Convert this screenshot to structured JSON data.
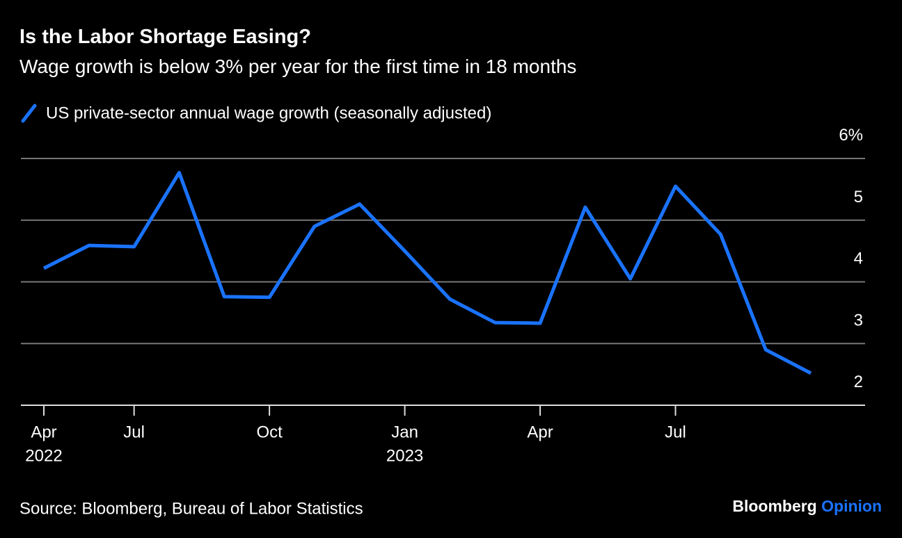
{
  "chart_data": {
    "type": "line",
    "title": "Is the Labor Shortage Easing?",
    "subtitle": "Wage growth is below 3% per year for the first time in 18 months",
    "categories": [
      "Apr",
      null,
      "Jul",
      null,
      null,
      "Oct",
      null,
      null,
      "Jan",
      null,
      null,
      "Apr",
      null,
      null,
      "Jul",
      null,
      null,
      null
    ],
    "category_years": [
      "2022",
      null,
      null,
      null,
      null,
      null,
      null,
      null,
      "2023",
      null,
      null,
      null,
      null,
      null,
      null,
      null,
      null,
      null
    ],
    "series": [
      {
        "name": "US private-sector annual wage growth (seasonally adjusted)",
        "color": "#1a73ff",
        "values": [
          4.22,
          4.59,
          4.57,
          5.77,
          3.76,
          3.75,
          4.9,
          5.26,
          4.5,
          3.72,
          3.34,
          3.33,
          5.21,
          4.05,
          5.55,
          4.77,
          2.9,
          2.52
        ]
      }
    ],
    "ylim": [
      2,
      6
    ],
    "yticks": [
      2,
      3,
      4,
      5,
      {
        "value": 6,
        "label": "6%"
      }
    ],
    "grid": true,
    "source": "Source: Bloomberg, Bureau of Labor Statistics",
    "brand": "Bloomberg",
    "brand_suffix": "Opinion"
  }
}
